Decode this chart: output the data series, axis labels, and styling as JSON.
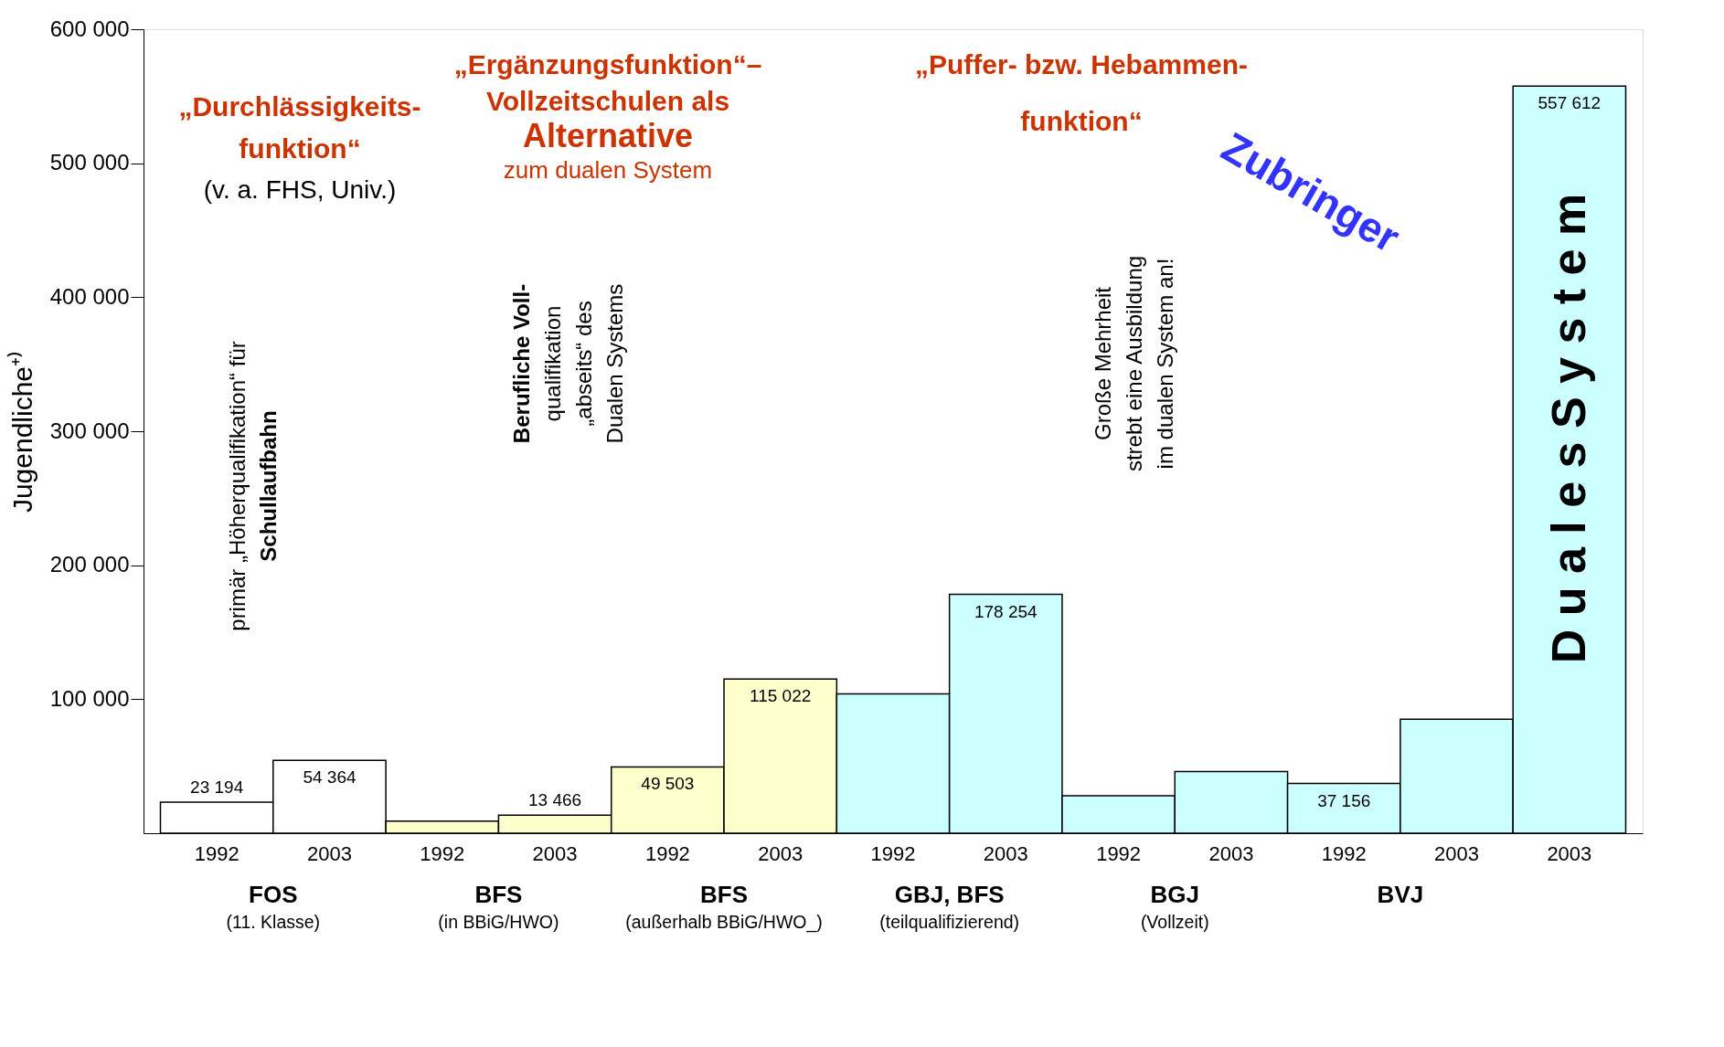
{
  "chart_data": {
    "type": "bar",
    "ylabel": "Jugendliche⁺⁾",
    "categories": [
      "1992",
      "2003",
      "1992",
      "2003",
      "1992",
      "2003",
      "1992",
      "2003",
      "1992",
      "2003",
      "1992",
      "2003",
      "2003"
    ],
    "values": [
      23194,
      54364,
      9000,
      13466,
      49503,
      115022,
      104000,
      178254,
      28000,
      46000,
      37156,
      85000,
      557612
    ],
    "value_labels": [
      "23 194",
      "54 364",
      null,
      "13 466",
      "49 503",
      "115 022",
      null,
      "178 254",
      null,
      null,
      "37 156",
      null,
      "557 612"
    ],
    "colors": [
      "#ffffff",
      "#ffffff",
      "#ffffcc",
      "#ffffcc",
      "#ffffcc",
      "#ffffcc",
      "#ccffff",
      "#ccffff",
      "#ccffff",
      "#ccffff",
      "#ccffff",
      "#ccffff",
      "#ccffff"
    ],
    "ylim": [
      0,
      600000
    ],
    "yticks": [
      {
        "value": 100000,
        "label": "100 000"
      },
      {
        "value": 200000,
        "label": "200 000"
      },
      {
        "value": 300000,
        "label": "300 000"
      },
      {
        "value": 400000,
        "label": "400 000"
      },
      {
        "value": 500000,
        "label": "500 000"
      },
      {
        "value": 600000,
        "label": "600 000"
      }
    ],
    "grid": false,
    "annotations": [
      "„Durchlässigkeits-\nfunktion“",
      "(v. a. FHS, Univ.)",
      "primär „Höherqualifikation“ für\nSchullaufbahn",
      "„Ergänzungsfunktion“–\nVollzeitschulen als",
      "Alternative",
      "zum dualen System",
      "Berufliche Voll-\nqualifikation\n„abseits“ des\nDualen Systems",
      "„Puffer- bzw. Hebammen-\nfunktion“",
      "Zubringer",
      "Große Mehrheit\nstrebt eine Ausbildung\nim dualen System an!",
      "D u a l e s   S y s t e m",
      "FOS\n(11. Klasse)",
      "BFS\n(in BBiG/HWO)",
      "BFS\n(außerhalb BBiG/HWO_)",
      "GBJ, BFS\n(teilqualifizierend)",
      "BGJ\n(Vollzeit)",
      "BVJ"
    ]
  }
}
